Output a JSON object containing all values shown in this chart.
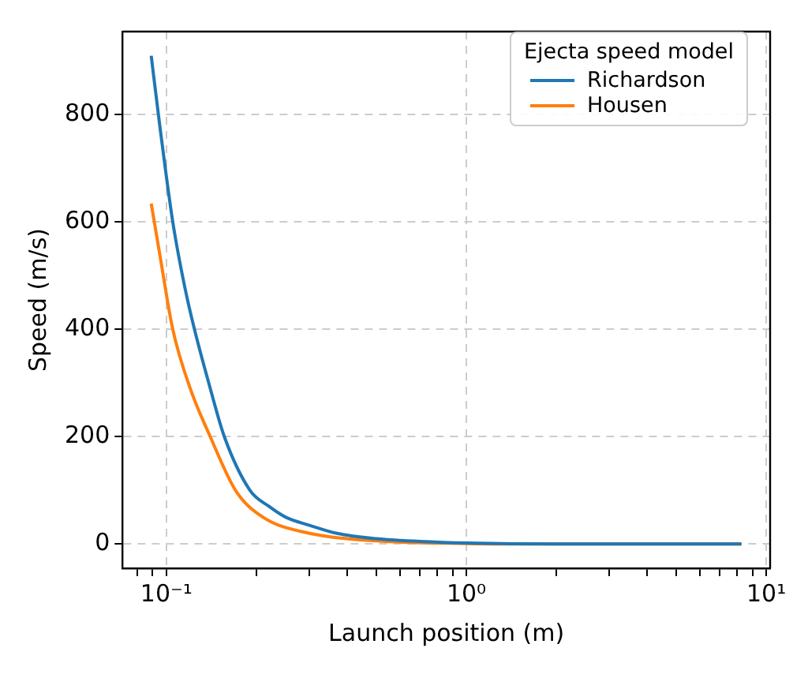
{
  "chart_data": {
    "type": "line",
    "xlabel": "Launch position (m)",
    "ylabel": "Speed (m/s)",
    "legend_title": "Ejecta speed model",
    "legend": "top right",
    "log": "x",
    "grid": true,
    "line_style": "solid",
    "marker": "none",
    "xlim": [
      0.0714,
      10.3
    ],
    "ylim": [
      -45,
      954
    ],
    "xticks": [
      {
        "value": 0.08,
        "label": null
      },
      {
        "value": 0.09,
        "label": null
      },
      {
        "value": 0.1,
        "label": "10⁻¹"
      },
      {
        "value": 0.2,
        "label": null
      },
      {
        "value": 0.3,
        "label": null
      },
      {
        "value": 0.4,
        "label": null
      },
      {
        "value": 0.5,
        "label": null
      },
      {
        "value": 0.6,
        "label": null
      },
      {
        "value": 0.7,
        "label": null
      },
      {
        "value": 0.8,
        "label": null
      },
      {
        "value": 0.9,
        "label": null
      },
      {
        "value": 1,
        "label": "10⁰"
      },
      {
        "value": 2,
        "label": null
      },
      {
        "value": 3,
        "label": null
      },
      {
        "value": 4,
        "label": null
      },
      {
        "value": 5,
        "label": null
      },
      {
        "value": 6,
        "label": null
      },
      {
        "value": 7,
        "label": null
      },
      {
        "value": 8,
        "label": null
      },
      {
        "value": 9,
        "label": null
      },
      {
        "value": 10,
        "label": "10¹"
      }
    ],
    "yticks": [
      0,
      200,
      400,
      600,
      800
    ],
    "series": [
      {
        "name": "Richardson",
        "color": "#1f77b4",
        "x": [
          0.089,
          0.095,
          0.105,
          0.115,
          0.124,
          0.14,
          0.156,
          0.19,
          0.22,
          0.25,
          0.3,
          0.37,
          0.5,
          0.7,
          1,
          2,
          4,
          8.26
        ],
        "values": [
          909,
          780,
          600,
          480,
          400,
          290,
          200,
          100,
          70,
          50,
          35,
          20,
          10,
          5,
          2,
          0,
          0,
          0
        ]
      },
      {
        "name": "Housen",
        "color": "#ff7f0e",
        "x": [
          0.089,
          0.095,
          0.105,
          0.12,
          0.14,
          0.17,
          0.21,
          0.3,
          0.5,
          1,
          2,
          8.26
        ],
        "values": [
          634,
          540,
          400,
          290,
          200,
          100,
          50,
          20,
          6,
          1,
          0,
          0
        ]
      }
    ]
  }
}
